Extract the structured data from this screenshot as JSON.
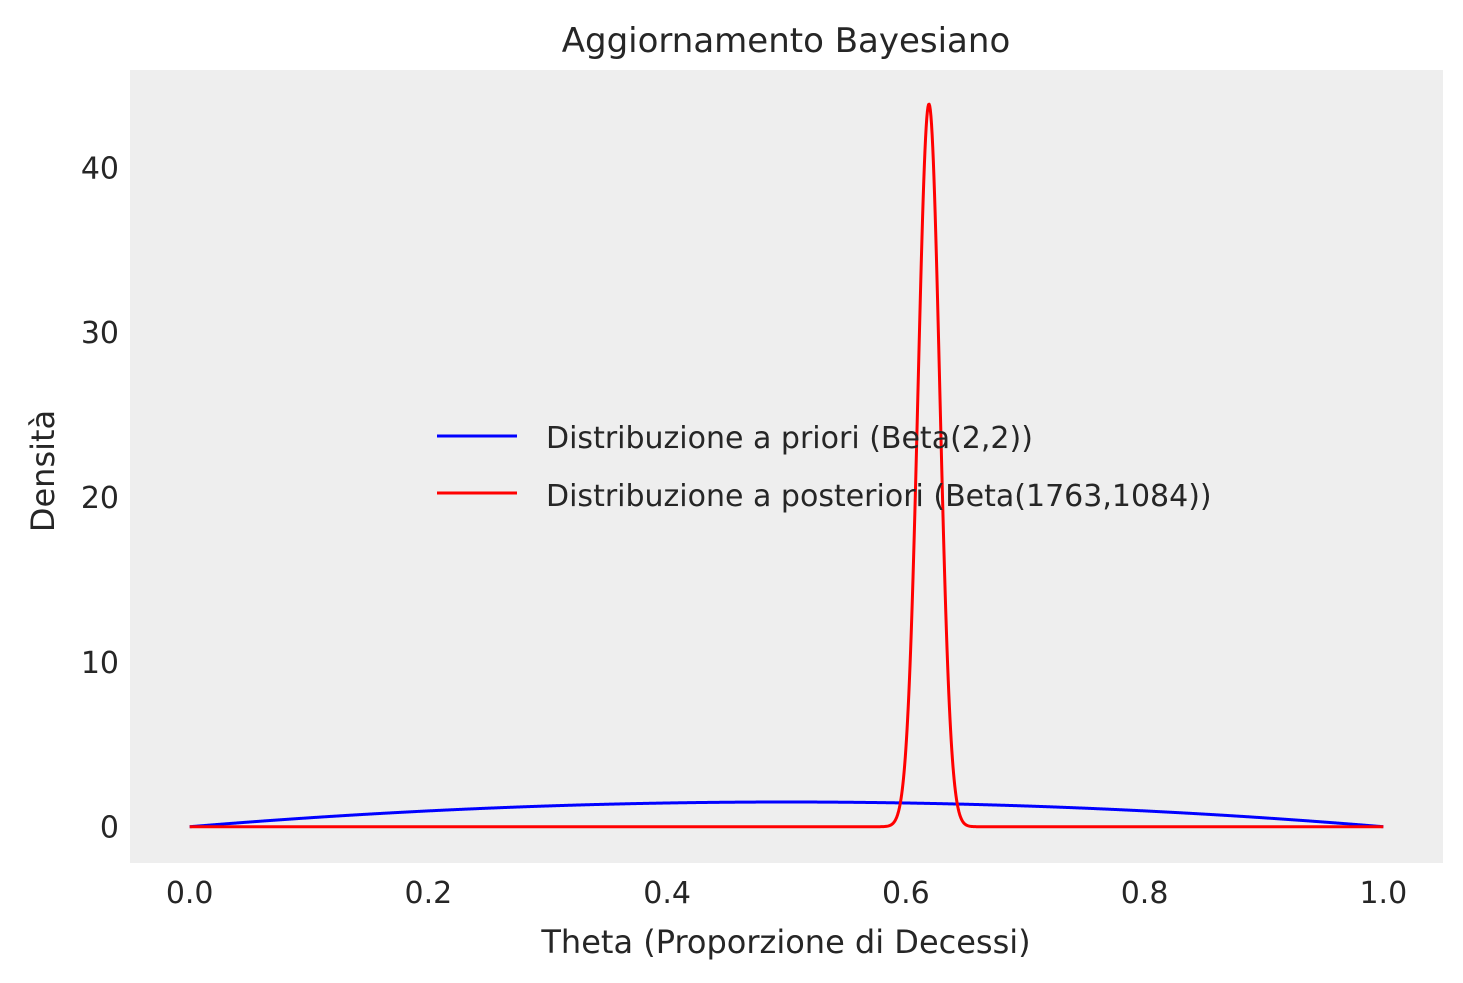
{
  "chart_data": {
    "type": "line",
    "title": "Aggiornamento Bayesiano",
    "xlabel": "Theta (Proporzione di Decessi)",
    "ylabel": "Densità",
    "xlim": [
      -0.05,
      1.05
    ],
    "ylim": [
      -2.2,
      45.9
    ],
    "x_ticks": [
      0.0,
      0.2,
      0.4,
      0.6,
      0.8,
      1.0
    ],
    "x_tick_labels": [
      "0.0",
      "0.2",
      "0.4",
      "0.6",
      "0.8",
      "1.0"
    ],
    "y_ticks": [
      0,
      10,
      20,
      30,
      40
    ],
    "y_tick_labels": [
      "0",
      "10",
      "20",
      "30",
      "40"
    ],
    "grid": false,
    "legend": "center-right",
    "background": "#eeeeee",
    "series": [
      {
        "name": "Distribuzione a priori (Beta(2,2))",
        "color": "#0000ff",
        "distribution": {
          "family": "beta",
          "alpha": 2,
          "beta": 2
        },
        "x": [
          0.0,
          0.1,
          0.2,
          0.3,
          0.4,
          0.5,
          0.6,
          0.7,
          0.8,
          0.9,
          1.0
        ],
        "y": [
          0.0,
          0.54,
          0.96,
          1.26,
          1.44,
          1.5,
          1.44,
          1.26,
          0.96,
          0.54,
          0.0
        ]
      },
      {
        "name": "Distribuzione a posteriori (Beta(1763,1084))",
        "color": "#ff0000",
        "distribution": {
          "family": "beta",
          "alpha": 1763,
          "beta": 1084
        },
        "x": [
          0.0,
          0.58,
          0.59,
          0.6,
          0.61,
          0.62,
          0.63,
          0.64,
          0.65,
          0.66,
          1.0
        ],
        "y": [
          0.0,
          0.0,
          0.4,
          5.3,
          29.1,
          43.8,
          27.7,
          4.9,
          0.3,
          0.0,
          0.0
        ]
      }
    ]
  }
}
